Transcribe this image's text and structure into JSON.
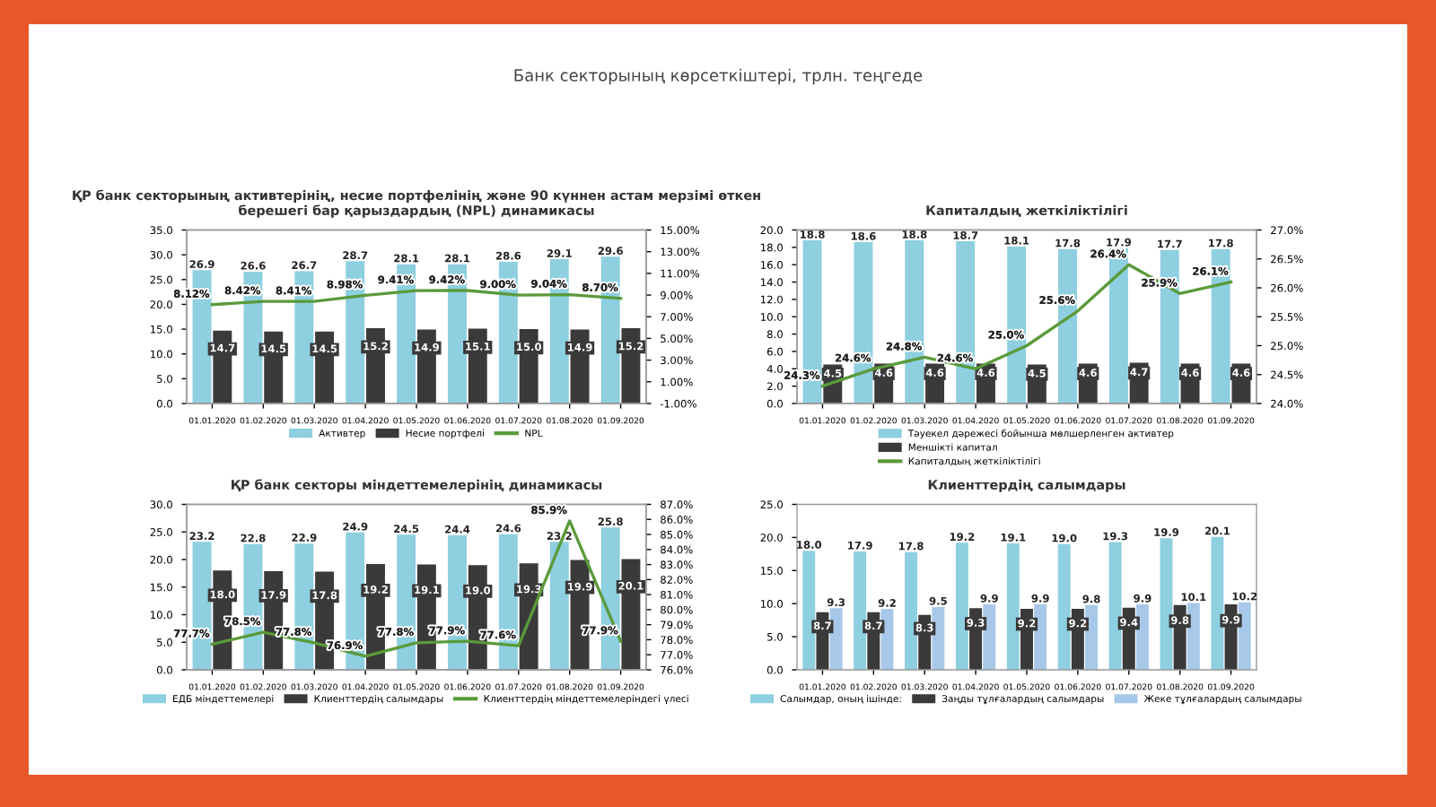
{
  "chart_data": [
    {
      "type": "bar",
      "title": "ҚР банк секторының активтерінің, несие портфелінің және 90 күннен астам мерзімі өткен берешегі бар қарыздардың (NPL) динамикасы",
      "annotations": [
        "Банк секторының көрсеткіштері, трлн. теңгеде"
      ],
      "categories": [
        "01.01.2020",
        "01.02.2020",
        "01.03.2020",
        "01.04.2020",
        "01.05.2020",
        "01.06.2020",
        "01.07.2020",
        "01.08.2020",
        "01.09.2020"
      ],
      "series": [
        {
          "name": "Активтер",
          "color": "#8ecfe0",
          "values": [
            26.9,
            26.6,
            26.7,
            28.7,
            28.1,
            28.1,
            28.6,
            29.1,
            29.6
          ]
        },
        {
          "name": "Несие портфелі",
          "color": "#3a3a3a",
          "values": [
            14.7,
            14.5,
            14.5,
            15.2,
            14.9,
            15.1,
            15.0,
            14.9,
            15.2
          ],
          "value_labels": [
            "14.7",
            "14.5",
            "14.5",
            "15.2",
            "14.9",
            "15.1",
            "15.0",
            "14.9",
            "15.2"
          ]
        },
        {
          "name": "NPL",
          "color": "#5a9a3a",
          "type": "line",
          "axis": "y2",
          "values": [
            8.12,
            8.42,
            8.41,
            8.98,
            9.41,
            9.42,
            9.0,
            9.04,
            8.7
          ],
          "value_labels": [
            "8.12%",
            "8.42%",
            "8.41%",
            "8.98%",
            "9.41%",
            "9.42%",
            "9.00%",
            "9.04%",
            "8.70%"
          ]
        }
      ],
      "ylim": [
        0,
        35
      ],
      "yticks": [
        {
          "value": 0,
          "label": "0.0"
        },
        {
          "value": 5,
          "label": "5.0"
        },
        {
          "value": 10,
          "label": "10.0"
        },
        {
          "value": 15,
          "label": "15.0"
        },
        {
          "value": 20,
          "label": "20.0"
        },
        {
          "value": 25,
          "label": "25.0"
        },
        {
          "value": 30,
          "label": "30.0"
        },
        {
          "value": 35,
          "label": "35.0"
        }
      ],
      "y2lim": [
        -1,
        15
      ],
      "y2ticks": [
        {
          "value": -1,
          "label": "-1.00%"
        },
        {
          "value": 1,
          "label": "1.00%"
        },
        {
          "value": 3,
          "label": "3.00%"
        },
        {
          "value": 5,
          "label": "5.00%"
        },
        {
          "value": 7,
          "label": "7.00%"
        },
        {
          "value": 9,
          "label": "9.00%"
        },
        {
          "value": 11,
          "label": "11.00%"
        },
        {
          "value": 13,
          "label": "13.00%"
        },
        {
          "value": 15,
          "label": "15.00%"
        }
      ],
      "data_labels": true,
      "legend": "bottom"
    },
    {
      "type": "bar",
      "title": "Капиталдың жеткіліктілігі",
      "categories": [
        "01.01.2020",
        "01.02.2020",
        "01.03.2020",
        "01.04.2020",
        "01.05.2020",
        "01.06.2020",
        "01.07.2020",
        "01.08.2020",
        "01.09.2020"
      ],
      "series": [
        {
          "name": "Тәуекел дәрежесі бойынша мөлшерленген активтер",
          "color": "#8ecfe0",
          "values": [
            18.8,
            18.6,
            18.8,
            18.7,
            18.1,
            17.8,
            17.9,
            17.7,
            17.8
          ]
        },
        {
          "name": "Меншікті капитал",
          "color": "#3a3a3a",
          "values": [
            4.5,
            4.6,
            4.6,
            4.6,
            4.5,
            4.6,
            4.7,
            4.6,
            4.6
          ]
        },
        {
          "name": "Капиталдың жеткіліктілігі",
          "color": "#5a9a3a",
          "type": "line",
          "axis": "y2",
          "values": [
            24.3,
            24.6,
            24.8,
            24.6,
            25.0,
            25.6,
            26.4,
            25.9,
            26.1
          ],
          "value_labels": [
            "24.3%",
            "24.6%",
            "24.8%",
            "24.6%",
            "25.0%",
            "25.6%",
            "26.4%",
            "25.9%",
            "26.1%"
          ]
        }
      ],
      "ylim": [
        0,
        20
      ],
      "yticks": [
        {
          "value": 0,
          "label": "0.0"
        },
        {
          "value": 2,
          "label": "2.0"
        },
        {
          "value": 4,
          "label": "4.0"
        },
        {
          "value": 6,
          "label": "6.0"
        },
        {
          "value": 8,
          "label": "8.0"
        },
        {
          "value": 10,
          "label": "10.0"
        },
        {
          "value": 12,
          "label": "12.0"
        },
        {
          "value": 14,
          "label": "14.0"
        },
        {
          "value": 16,
          "label": "16.0"
        },
        {
          "value": 18,
          "label": "18.0"
        },
        {
          "value": 20,
          "label": "20.0"
        }
      ],
      "y2lim": [
        24,
        27
      ],
      "y2ticks": [
        {
          "value": 24,
          "label": "24.0%"
        },
        {
          "value": 24.5,
          "label": "24.5%"
        },
        {
          "value": 25,
          "label": "25.0%"
        },
        {
          "value": 25.5,
          "label": "25.5%"
        },
        {
          "value": 26,
          "label": "26.0%"
        },
        {
          "value": 26.5,
          "label": "26.5%"
        },
        {
          "value": 27,
          "label": "27.0%"
        }
      ],
      "data_labels": true,
      "legend": "bottom"
    },
    {
      "type": "bar",
      "title": "ҚР банк секторы міндеттемелерінің динамикасы",
      "categories": [
        "01.01.2020",
        "01.02.2020",
        "01.03.2020",
        "01.04.2020",
        "01.05.2020",
        "01.06.2020",
        "01.07.2020",
        "01.08.2020",
        "01.09.2020"
      ],
      "series": [
        {
          "name": "ЕДБ міндеттемелері",
          "color": "#8ecfe0",
          "values": [
            23.2,
            22.8,
            22.9,
            24.9,
            24.5,
            24.4,
            24.6,
            23.2,
            25.8
          ]
        },
        {
          "name": "Клиенттердің салымдары",
          "color": "#3a3a3a",
          "values": [
            18.0,
            17.9,
            17.8,
            19.2,
            19.1,
            19.0,
            19.3,
            19.9,
            20.1
          ],
          "value_labels": [
            "18.0",
            "17.9",
            "17.8",
            "19.2",
            "19.1",
            "19.0",
            "19.3",
            "19.9",
            "20.1"
          ]
        },
        {
          "name": "Клиенттердің міндеттемелеріндегі үлесі",
          "color": "#5a9a3a",
          "type": "line",
          "axis": "y2",
          "values": [
            77.7,
            78.5,
            77.8,
            76.9,
            77.8,
            77.9,
            77.6,
            85.9,
            77.9
          ],
          "value_labels": [
            "77.7%",
            "78.5%",
            "77.8%",
            "76.9%",
            "77.8%",
            "77.9%",
            "77.6%",
            "85.9%",
            "77.9%"
          ]
        }
      ],
      "ylim": [
        0,
        30
      ],
      "yticks": [
        {
          "value": 0,
          "label": "0.0"
        },
        {
          "value": 5,
          "label": "5.0"
        },
        {
          "value": 10,
          "label": "10.0"
        },
        {
          "value": 15,
          "label": "15.0"
        },
        {
          "value": 20,
          "label": "20.0"
        },
        {
          "value": 25,
          "label": "25.0"
        },
        {
          "value": 30,
          "label": "30.0"
        }
      ],
      "y2lim": [
        76,
        87
      ],
      "y2ticks": [
        {
          "value": 76,
          "label": "76.0%"
        },
        {
          "value": 77,
          "label": "77.0%"
        },
        {
          "value": 78,
          "label": "78.0%"
        },
        {
          "value": 79,
          "label": "79.0%"
        },
        {
          "value": 80,
          "label": "80.0%"
        },
        {
          "value": 81,
          "label": "81.0%"
        },
        {
          "value": 82,
          "label": "82.0%"
        },
        {
          "value": 83,
          "label": "83.0%"
        },
        {
          "value": 84,
          "label": "84.0%"
        },
        {
          "value": 85,
          "label": "85.0%"
        },
        {
          "value": 86,
          "label": "86.0%"
        },
        {
          "value": 87,
          "label": "87.0%"
        }
      ],
      "data_labels": true,
      "legend": "bottom"
    },
    {
      "type": "bar",
      "title": "Клиенттердің салымдары",
      "categories": [
        "01.01.2020",
        "01.02.2020",
        "01.03.2020",
        "01.04.2020",
        "01.05.2020",
        "01.06.2020",
        "01.07.2020",
        "01.08.2020",
        "01.09.2020"
      ],
      "series": [
        {
          "name": "Салымдар, оның ішінде:",
          "color": "#8ecfe0",
          "values": [
            18.0,
            17.9,
            17.8,
            19.2,
            19.1,
            19.0,
            19.3,
            19.9,
            20.1
          ],
          "value_labels": [
            "18.0",
            "17.9",
            "17.8",
            "19.2",
            "19.1",
            "19.0",
            "19.3",
            "19.9",
            "20.1"
          ]
        },
        {
          "name": "Заңды тұлғалардың салымдары",
          "color": "#3a3a3a",
          "values": [
            8.7,
            8.7,
            8.3,
            9.3,
            9.2,
            9.2,
            9.4,
            9.8,
            9.9
          ]
        },
        {
          "name": "Жеке тұлғалардың салымдары",
          "color": "#a8c8ea",
          "values": [
            9.3,
            9.2,
            9.5,
            9.9,
            9.9,
            9.8,
            9.9,
            10.1,
            10.2
          ]
        }
      ],
      "ylim": [
        0,
        25
      ],
      "yticks": [
        {
          "value": 0,
          "label": "0.0"
        },
        {
          "value": 5,
          "label": "5.0"
        },
        {
          "value": 10,
          "label": "10.0"
        },
        {
          "value": 15,
          "label": "15.0"
        },
        {
          "value": 20,
          "label": "20.0"
        },
        {
          "value": 25,
          "label": "25.0"
        }
      ],
      "data_labels": true,
      "legend": "bottom"
    }
  ]
}
